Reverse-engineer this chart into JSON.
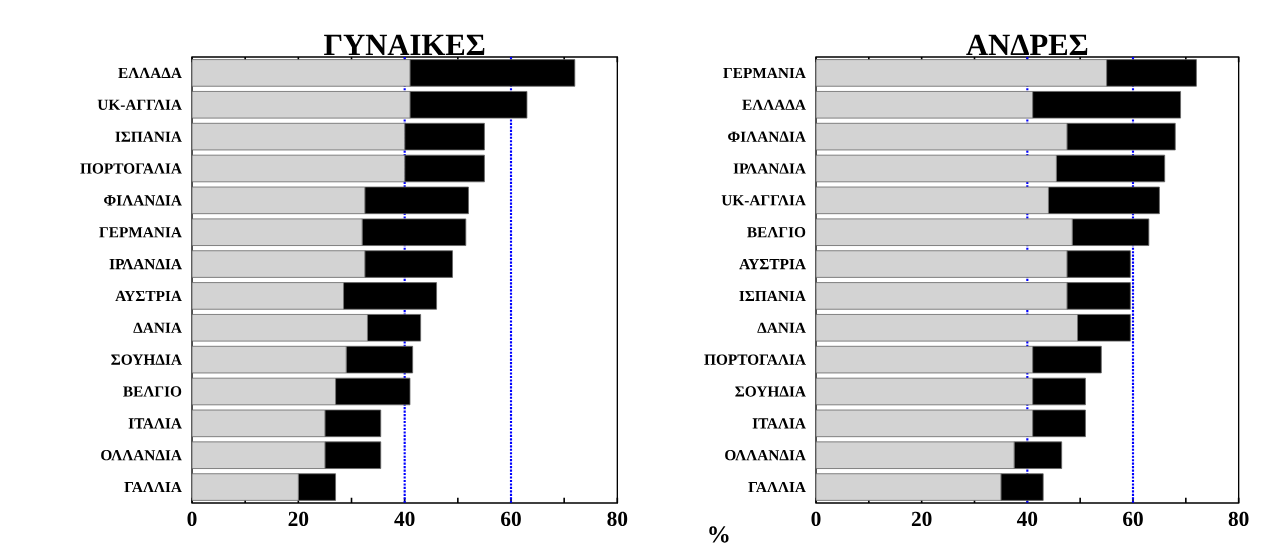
{
  "chart_data": [
    {
      "type": "bar",
      "orientation": "horizontal",
      "stacked": true,
      "title": "ΓΥΝΑΙΚΕΣ",
      "categories": [
        "ΕΛΛΑΔΑ",
        "UK-ΑΓΓΛΙΑ",
        "ΙΣΠΑΝΙΑ",
        "ΠΟΡΤΟΓΑΛΙΑ",
        "ΦΙΛΑΝΔΙΑ",
        "ΓΕΡΜΑΝΙΑ",
        "ΙΡΛΑΝΔΙΑ",
        "ΑΥΣΤΡΙΑ",
        "ΔΑΝΙΑ",
        "ΣΟΥΗΔΙΑ",
        "ΒΕΛΓΙΟ",
        "ΙΤΑΛΙΑ",
        "ΟΛΛΑΝΔΙΑ",
        "ΓΑΛΛΙΑ"
      ],
      "series": [
        {
          "color": "#d3d3d3",
          "values": [
            41,
            41,
            40,
            40,
            32.5,
            32,
            32.5,
            28.5,
            33,
            29,
            27,
            25,
            25,
            20
          ]
        },
        {
          "color": "#000000",
          "values": [
            31,
            22,
            15,
            15,
            19.5,
            19.5,
            16.5,
            17.5,
            10,
            12.5,
            14,
            10.5,
            10.5,
            7
          ]
        }
      ],
      "xlim": [
        0,
        80
      ],
      "xticks": [
        0,
        {
          "value": 10,
          "label": null
        },
        20,
        {
          "value": 30,
          "label": null
        },
        40,
        {
          "value": 50,
          "label": null
        },
        60,
        {
          "value": 70,
          "label": null
        },
        80
      ],
      "ref_lines": [
        {
          "axis": "x",
          "value": 40,
          "color": "#0000ff",
          "line_style": "dotted"
        },
        {
          "axis": "x",
          "value": 60,
          "color": "#0000ff",
          "line_style": "dotted"
        }
      ]
    },
    {
      "type": "bar",
      "orientation": "horizontal",
      "stacked": true,
      "title": "ΑΝΔΡΕΣ",
      "xlabel": "%",
      "categories": [
        "ΓΕΡΜΑΝΙΑ",
        "ΕΛΛΑΔΑ",
        "ΦΙΛΑΝΔΙΑ",
        "ΙΡΛΑΝΔΙΑ",
        "UK-ΑΓΓΛΙΑ",
        "ΒΕΛΓΙΟ",
        "ΑΥΣΤΡΙΑ",
        "ΙΣΠΑΝΙΑ",
        "ΔΑΝΙΑ",
        "ΠΟΡΤΟΓΑΛΙΑ",
        "ΣΟΥΗΔΙΑ",
        "ΙΤΑΛΙΑ",
        "ΟΛΛΑΝΔΙΑ",
        "ΓΑΛΛΙΑ"
      ],
      "series": [
        {
          "color": "#d3d3d3",
          "values": [
            55,
            41,
            47.5,
            45.5,
            44,
            48.5,
            47.5,
            47.5,
            49.5,
            41,
            41,
            41,
            37.5,
            35
          ]
        },
        {
          "color": "#000000",
          "values": [
            17,
            28,
            20.5,
            20.5,
            21,
            14.5,
            12,
            12,
            10,
            13,
            10,
            10,
            9,
            8
          ]
        }
      ],
      "xlim": [
        0,
        80
      ],
      "xticks": [
        0,
        {
          "value": 10,
          "label": null
        },
        20,
        {
          "value": 30,
          "label": null
        },
        40,
        {
          "value": 50,
          "label": null
        },
        60,
        {
          "value": 70,
          "label": null
        },
        80
      ],
      "ref_lines": [
        {
          "axis": "x",
          "value": 40,
          "color": "#0000ff",
          "line_style": "dotted"
        },
        {
          "axis": "x",
          "value": 60,
          "color": "#0000ff",
          "line_style": "dotted"
        }
      ]
    }
  ]
}
